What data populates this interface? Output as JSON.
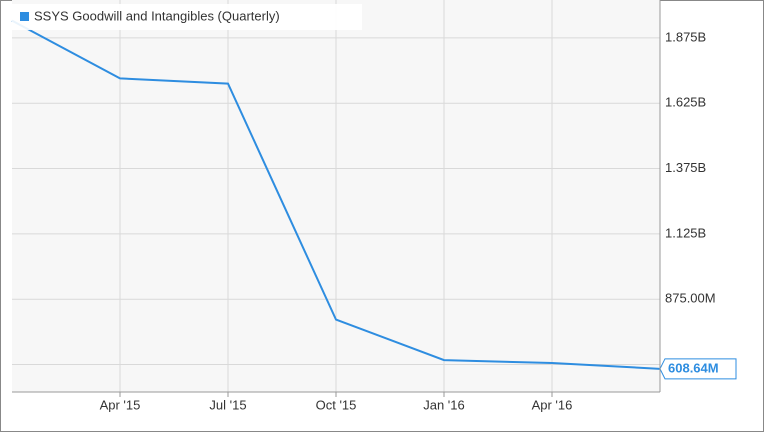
{
  "chart_data": {
    "type": "line",
    "x": [
      "2014-12",
      "2015-03",
      "2015-06",
      "2015-09",
      "2015-12",
      "2016-03",
      "2016-06"
    ],
    "series": [
      {
        "name": "SSYS Goodwill and Intangibles (Quarterly)",
        "color": "#2e8de0",
        "values": [
          1941000000,
          1720000000,
          1700000000,
          797000000,
          642000000,
          631000000,
          608640000
        ],
        "value_labels": [
          null,
          null,
          null,
          null,
          null,
          null,
          "608.64M"
        ]
      }
    ],
    "xlim": [
      "2014-12",
      "2016-06"
    ],
    "xticks": [
      {
        "value": "2015-04",
        "label": "Apr '15"
      },
      {
        "value": "2015-07",
        "label": "Jul '15"
      },
      {
        "value": "2015-10",
        "label": "Oct '15"
      },
      {
        "value": "2016-01",
        "label": "Jan '16"
      },
      {
        "value": "2016-04",
        "label": "Apr '16"
      }
    ],
    "ylim": [
      520000000,
      2020000000
    ],
    "yticks": [
      {
        "value": 625000000,
        "label": null
      },
      {
        "value": 875000000,
        "label": "875.00M"
      },
      {
        "value": 1125000000,
        "label": "1.125B"
      },
      {
        "value": 1375000000,
        "label": "1.375B"
      },
      {
        "value": 1625000000,
        "label": "1.625B"
      },
      {
        "value": 1875000000,
        "label": "1.875B"
      }
    ],
    "grid": true,
    "legend": "top-left"
  }
}
